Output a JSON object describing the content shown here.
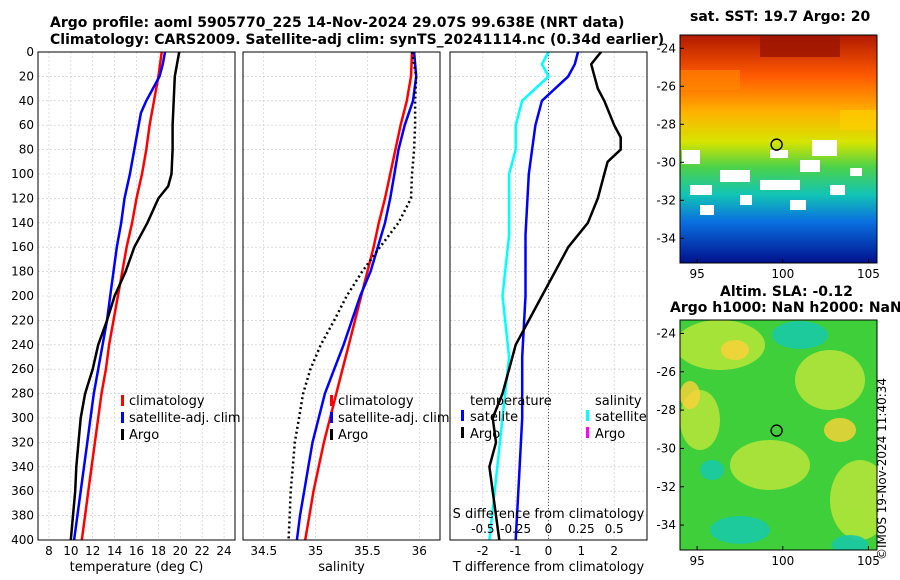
{
  "title_line1": "Argo profile: aoml 5905770_225 14-Nov-2024 29.07S 99.638E (NRT data)",
  "title_line2": "Climatology: CARS2009. Satellite-adj clim: synTS_20241114.nc (0.34d earlier)",
  "sst_title": "sat. SST: 19.7 Argo: 20",
  "sla_title1": "Altim. SLA: -0.12",
  "sla_title2": "Argo h1000: NaN h2000: NaN",
  "credit": "©IMOS 19-Nov-2024 11:40:34",
  "colors": {
    "clim": "#ff0000",
    "sat": "#0000ff",
    "argo": "#000000",
    "sat_s": "#00ffff",
    "argo_s": "#ff00ff"
  },
  "chart_data": [
    {
      "type": "line",
      "name": "temperature",
      "xlabel": "temperature (deg C)",
      "ylabel": "",
      "xlim": [
        7,
        25
      ],
      "ylim": [
        400,
        0
      ],
      "xticks": [
        8,
        10,
        12,
        14,
        16,
        18,
        20,
        22,
        24
      ],
      "yticks": [
        0,
        20,
        40,
        60,
        80,
        100,
        120,
        140,
        160,
        180,
        200,
        220,
        240,
        260,
        280,
        300,
        320,
        340,
        360,
        380,
        400
      ],
      "legend": [
        "climatology",
        "satellite-adj. clim",
        "Argo"
      ],
      "series": [
        {
          "name": "climatology",
          "style": "red",
          "depth": [
            0,
            20,
            40,
            60,
            80,
            100,
            120,
            140,
            160,
            180,
            200,
            220,
            240,
            260,
            280,
            300,
            320,
            340,
            360,
            380,
            400
          ],
          "values": [
            18.3,
            18.0,
            17.6,
            17.2,
            16.9,
            16.5,
            16.0,
            15.6,
            15.1,
            14.7,
            14.3,
            13.9,
            13.5,
            13.2,
            12.8,
            12.5,
            12.2,
            11.9,
            11.6,
            11.3,
            11.0
          ]
        },
        {
          "name": "satellite-adj. clim",
          "style": "blue",
          "depth": [
            0,
            10,
            20,
            30,
            40,
            50,
            60,
            80,
            100,
            120,
            140,
            160,
            180,
            200,
            220,
            240,
            260,
            280,
            300,
            320,
            340,
            360,
            380,
            400
          ],
          "values": [
            18.6,
            18.4,
            18.1,
            17.5,
            16.9,
            16.4,
            16.2,
            15.8,
            15.4,
            14.9,
            14.6,
            14.2,
            13.9,
            13.6,
            13.3,
            12.9,
            12.5,
            12.1,
            11.8,
            11.5,
            11.2,
            10.9,
            10.6,
            10.3
          ]
        },
        {
          "name": "Argo",
          "style": "black",
          "depth": [
            0,
            10,
            20,
            40,
            60,
            80,
            100,
            110,
            120,
            140,
            160,
            180,
            200,
            220,
            240,
            260,
            280,
            300,
            320,
            340,
            360,
            380,
            400
          ],
          "values": [
            19.9,
            19.7,
            19.5,
            19.4,
            19.3,
            19.3,
            19.2,
            18.9,
            18.0,
            17.0,
            15.8,
            15.0,
            14.0,
            13.3,
            12.5,
            12.0,
            11.3,
            10.9,
            10.7,
            10.5,
            10.4,
            10.2,
            10.0
          ]
        }
      ]
    },
    {
      "type": "line",
      "name": "salinity",
      "xlabel": "salinity",
      "xlim": [
        34.3,
        36.2
      ],
      "ylim": [
        400,
        0
      ],
      "xticks": [
        34.5,
        35,
        35.5,
        36
      ],
      "xticklabels": [
        "34.5",
        "35",
        "35.5",
        "36"
      ],
      "legend": [
        "climatology",
        "satellite-adj. clim",
        "Argo"
      ],
      "series": [
        {
          "name": "climatology",
          "style": "red",
          "depth": [
            0,
            20,
            40,
            60,
            80,
            100,
            120,
            140,
            160,
            180,
            200,
            220,
            240,
            260,
            280,
            300,
            320,
            340,
            360,
            380,
            400
          ],
          "values": [
            35.93,
            35.92,
            35.88,
            35.82,
            35.77,
            35.72,
            35.67,
            35.61,
            35.56,
            35.5,
            35.44,
            35.38,
            35.32,
            35.26,
            35.2,
            35.14,
            35.08,
            35.03,
            34.98,
            34.94,
            34.9
          ]
        },
        {
          "name": "satellite-adj. clim",
          "style": "blue",
          "depth": [
            0,
            20,
            40,
            60,
            80,
            100,
            120,
            140,
            160,
            180,
            200,
            220,
            240,
            260,
            280,
            300,
            320,
            340,
            360,
            380,
            400
          ],
          "values": [
            35.95,
            35.97,
            35.94,
            35.86,
            35.8,
            35.76,
            35.72,
            35.67,
            35.6,
            35.53,
            35.43,
            35.35,
            35.27,
            35.18,
            35.09,
            35.03,
            34.97,
            34.93,
            34.89,
            34.85,
            34.82
          ]
        },
        {
          "name": "Argo",
          "style": "black-dotted",
          "depth": [
            0,
            20,
            40,
            60,
            80,
            100,
            120,
            140,
            160,
            180,
            200,
            220,
            240,
            260,
            280,
            300,
            320,
            340,
            360,
            380,
            400
          ],
          "values": [
            35.93,
            35.97,
            35.96,
            35.96,
            35.95,
            35.93,
            35.92,
            35.8,
            35.62,
            35.45,
            35.3,
            35.18,
            35.05,
            34.95,
            34.88,
            34.84,
            34.8,
            34.78,
            34.76,
            34.75,
            34.74
          ]
        }
      ]
    },
    {
      "type": "line",
      "name": "difference",
      "xlabel": "T difference from climatology",
      "xlabel_top": "S difference from climatology",
      "xlim": [
        -3,
        3
      ],
      "ylim": [
        400,
        0
      ],
      "xticks": [
        -2,
        -1,
        0,
        1,
        2
      ],
      "s_ticklabels": [
        "-0.5",
        "-0.25",
        "0",
        "0.25",
        "0.5"
      ],
      "legend_t_title": "temperature",
      "legend_s_title": "salinity",
      "legend_t": [
        "satelite",
        "Argo"
      ],
      "legend_s": [
        "satellite",
        "Argo"
      ],
      "series": [
        {
          "name": "T satellite",
          "style": "blue",
          "depth": [
            0,
            10,
            20,
            30,
            40,
            60,
            80,
            100,
            150,
            200,
            250,
            300,
            350,
            400
          ],
          "values": [
            0.9,
            0.8,
            0.6,
            0.2,
            -0.2,
            -0.4,
            -0.5,
            -0.6,
            -0.7,
            -0.7,
            -0.8,
            -0.8,
            -0.9,
            -1.0
          ]
        },
        {
          "name": "S satellite",
          "style": "cyan",
          "depth": [
            0,
            10,
            20,
            30,
            40,
            60,
            80,
            100,
            150,
            200,
            250,
            300,
            350,
            400
          ],
          "values": [
            0.0,
            -0.05,
            0.0,
            -0.1,
            -0.2,
            -0.25,
            -0.25,
            -0.3,
            -0.3,
            -0.35,
            -0.3,
            -0.35,
            -0.4,
            -0.45
          ]
        },
        {
          "name": "T Argo",
          "style": "black",
          "depth": [
            0,
            10,
            20,
            30,
            40,
            60,
            70,
            80,
            90,
            100,
            120,
            140,
            160,
            180,
            200,
            220,
            240,
            260,
            280,
            300,
            320,
            340,
            360,
            380,
            400
          ],
          "values": [
            1.6,
            1.3,
            1.4,
            1.5,
            1.7,
            2.0,
            2.2,
            2.2,
            1.8,
            1.7,
            1.5,
            1.2,
            0.6,
            0.2,
            -0.2,
            -0.6,
            -1.0,
            -1.2,
            -1.4,
            -1.7,
            -1.6,
            -1.8,
            -1.7,
            -1.6,
            -1.5
          ]
        }
      ]
    },
    {
      "type": "heatmap",
      "name": "sst-map",
      "title": "sat. SST: 19.7 Argo: 20",
      "xlim": [
        94,
        105.5
      ],
      "ylim": [
        -35.3,
        -23.3
      ],
      "xticks": [
        95,
        100,
        105
      ],
      "yticks": [
        -24,
        -26,
        -28,
        -30,
        -32,
        -34
      ],
      "argo_position": [
        99.64,
        -29.07
      ]
    },
    {
      "type": "heatmap",
      "name": "sla-map",
      "title": "Altim. SLA: -0.12",
      "xlim": [
        94,
        105.5
      ],
      "ylim": [
        -35.3,
        -23.3
      ],
      "xticks": [
        95,
        100,
        105
      ],
      "yticks": [
        -24,
        -26,
        -28,
        -30,
        -32,
        -34
      ],
      "argo_position": [
        99.64,
        -29.07
      ]
    }
  ]
}
